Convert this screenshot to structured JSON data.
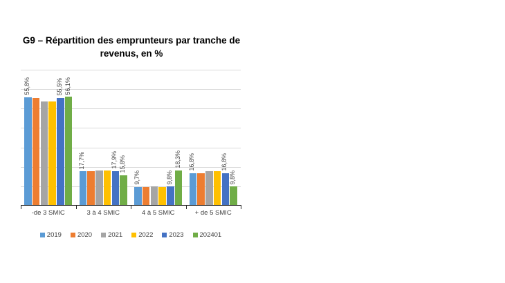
{
  "chart_data": {
    "type": "bar",
    "title": "G9 – Répartition des emprunteurs par tranche de revenus, en %",
    "categories": [
      "-de 3 SMIC",
      "3 à 4 SMIC",
      "4 à 5 SMIC",
      "+ de 5 SMIC"
    ],
    "series": [
      {
        "name": "2019",
        "color": "#5B9BD5",
        "values": [
          55.8,
          17.7,
          9.7,
          16.8
        ],
        "labels": [
          "55,8%",
          "17,7%",
          "9,7%",
          "16,8%"
        ]
      },
      {
        "name": "2020",
        "color": "#ED7D31",
        "values": [
          55.5,
          17.6,
          9.7,
          16.8
        ],
        "labels": null
      },
      {
        "name": "2021",
        "color": "#A5A5A5",
        "values": [
          53.7,
          18.1,
          9.8,
          17.7
        ],
        "labels": null
      },
      {
        "name": "2022",
        "color": "#FFC000",
        "values": [
          53.5,
          18.1,
          9.7,
          17.7
        ],
        "labels": null
      },
      {
        "name": "2023",
        "color": "#4472C4",
        "values": [
          55.5,
          17.9,
          9.8,
          16.8
        ],
        "labels": [
          "55,5%",
          "17,9%",
          "9,8%",
          "16,8%"
        ]
      },
      {
        "name": "202401",
        "color": "#70AD47",
        "values": [
          56.1,
          15.8,
          18.3,
          9.8
        ],
        "labels": [
          "56,1%",
          "15,8%",
          "18,3%",
          "9,8%"
        ]
      }
    ],
    "ylim": [
      0,
      70
    ],
    "grid_interval": 10,
    "gridlines": true,
    "y_axis_labels_visible": false,
    "legend_position": "bottom",
    "value_format": "comma-decimal-percent",
    "colors": {
      "gridline": "#d9d9d9",
      "axis": "#262626",
      "label_text": "#404040",
      "title_text": "#000000"
    }
  }
}
